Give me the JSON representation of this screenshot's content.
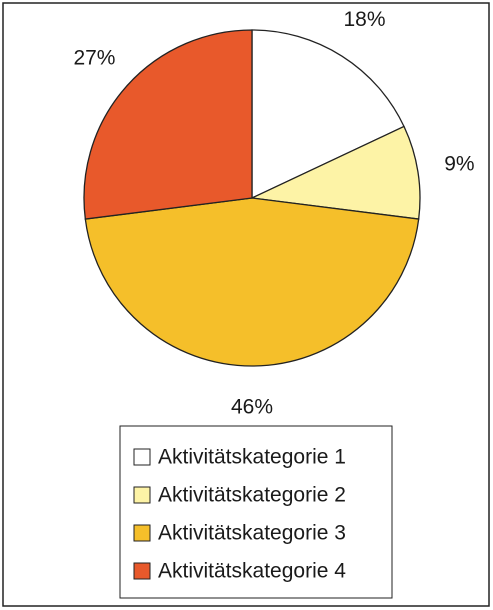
{
  "chart_data": {
    "type": "pie",
    "categories": [
      "Aktivitätskategorie 1",
      "Aktivitätskategorie 2",
      "Aktivitätskategorie 3",
      "Aktivitätskategorie 4"
    ],
    "values": [
      18,
      9,
      46,
      27
    ],
    "value_labels": [
      "18%",
      "9%",
      "46%",
      "27%"
    ],
    "colors": [
      "#ffffff",
      "#fdf3a6",
      "#f5bf2a",
      "#e8592b"
    ],
    "legend": "bottom"
  }
}
